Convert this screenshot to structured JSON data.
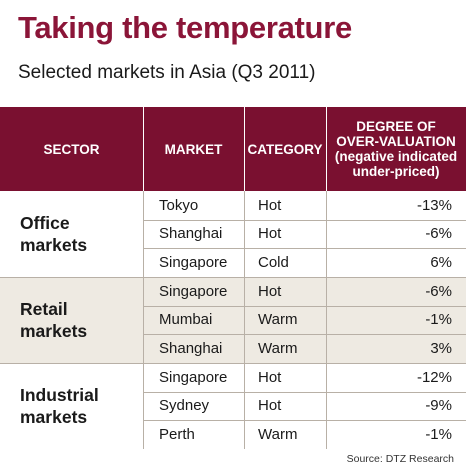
{
  "title": "Taking the temperature",
  "subtitle": "Selected markets in Asia (Q3 2011)",
  "source": "Source: DTZ Research",
  "colors": {
    "header_bg": "#7a1030",
    "title": "#8b1538",
    "shaded_row": "#eeeae2"
  },
  "chart_data": {
    "type": "table",
    "title": "Taking the temperature",
    "subtitle": "Selected markets in Asia (Q3 2011)",
    "columns": [
      "SECTOR",
      "MARKET",
      "CATEGORY",
      "DEGREE OF OVER-VALUATION (negative indicated under-priced)"
    ],
    "header_over_lines": [
      "DEGREE OF",
      "OVER-VALUATION",
      "(negative indicated",
      "under-priced)"
    ],
    "groups": [
      {
        "sector_lines": [
          "Office",
          "markets"
        ],
        "rows": [
          {
            "market": "Tokyo",
            "category": "Hot",
            "value": "-13%"
          },
          {
            "market": "Shanghai",
            "category": "Hot",
            "value": "-6%"
          },
          {
            "market": "Singapore",
            "category": "Cold",
            "value": "6%"
          }
        ]
      },
      {
        "sector_lines": [
          "Retail",
          "markets"
        ],
        "rows": [
          {
            "market": "Singapore",
            "category": "Hot",
            "value": "-6%"
          },
          {
            "market": "Mumbai",
            "category": "Warm",
            "value": "-1%"
          },
          {
            "market": "Shanghai",
            "category": "Warm",
            "value": "3%"
          }
        ]
      },
      {
        "sector_lines": [
          "Industrial",
          "markets"
        ],
        "rows": [
          {
            "market": "Singapore",
            "category": "Hot",
            "value": "-12%"
          },
          {
            "market": "Sydney",
            "category": "Hot",
            "value": "-9%"
          },
          {
            "market": "Perth",
            "category": "Warm",
            "value": "-1%"
          }
        ]
      }
    ]
  }
}
